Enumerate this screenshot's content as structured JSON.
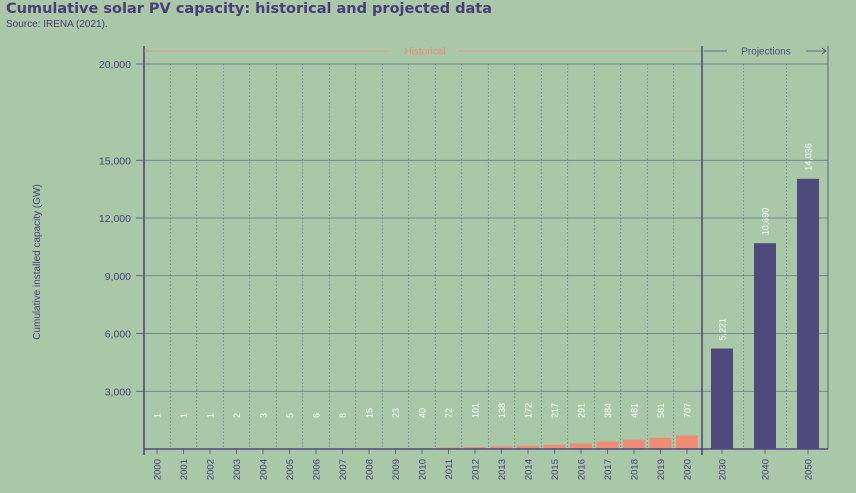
{
  "header": {
    "title": "Cumulative solar PV capacity: historical and projected data",
    "source": "Source: IRENA (2021)."
  },
  "chart_data": {
    "type": "bar",
    "title": "Cumulative solar PV capacity: historical and projected data",
    "subtitle": "Source: IRENA (2021).",
    "xlabel": "",
    "ylabel": "Cumulative installed capacity (GW)",
    "ylim": [
      0,
      20000
    ],
    "y_ticks": [
      "3,000",
      "6,000",
      "9,000",
      "12,000",
      "15,000",
      "20,000"
    ],
    "grid": true,
    "sections": [
      {
        "name": "Historical",
        "color": "#f08c74"
      },
      {
        "name": "Projections",
        "color": "#4e4a7c"
      }
    ],
    "categories": [
      "2000",
      "2001",
      "2002",
      "2003",
      "2004",
      "2005",
      "2006",
      "2007",
      "2008",
      "2009",
      "2010",
      "2011",
      "2012",
      "2013",
      "2014",
      "2015",
      "2016",
      "2017",
      "2018",
      "2019",
      "2020",
      "2030",
      "2040",
      "2050"
    ],
    "values": [
      1,
      1,
      1,
      2,
      3,
      5,
      6,
      8,
      15,
      23,
      40,
      72,
      101,
      138,
      172,
      217,
      291,
      384,
      481,
      581,
      707,
      5221,
      10690,
      14036
    ],
    "value_labels": [
      "1",
      "1",
      "1",
      "2",
      "3",
      "5",
      "6",
      "8",
      "15",
      "23",
      "40",
      "72",
      "101",
      "138",
      "172",
      "217",
      "291",
      "384",
      "481",
      "581",
      "707",
      "5,221",
      "10,690",
      "14,036"
    ],
    "section_of_bar": [
      "Historical",
      "Historical",
      "Historical",
      "Historical",
      "Historical",
      "Historical",
      "Historical",
      "Historical",
      "Historical",
      "Historical",
      "Historical",
      "Historical",
      "Historical",
      "Historical",
      "Historical",
      "Historical",
      "Historical",
      "Historical",
      "Historical",
      "Historical",
      "Historical",
      "Projections",
      "Projections",
      "Projections"
    ]
  }
}
